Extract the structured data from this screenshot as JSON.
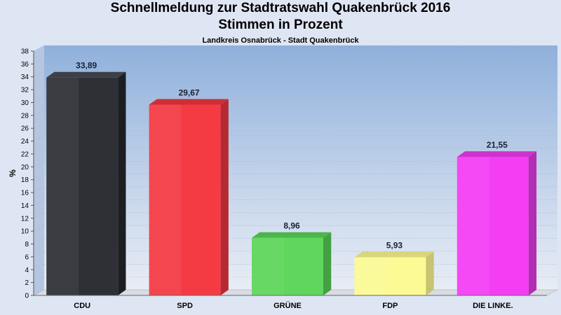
{
  "header": {
    "title_line1": "Schnellmeldung zur Stadtratswahl Quakenbrück 2016",
    "title_line2": "Stimmen in Prozent",
    "subtitle": "Landkreis Osnabrück - Stadt Quakenbrück"
  },
  "chart_data": {
    "type": "bar",
    "title": "Schnellmeldung zur Stadtratswahl Quakenbrück 2016 Stimmen in Prozent",
    "subtitle": "Landkreis Osnabrück - Stadt Quakenbrück",
    "xlabel": "",
    "ylabel": "%",
    "ylim": [
      0,
      38
    ],
    "ytick_step": 2,
    "grid": true,
    "categories": [
      "CDU",
      "SPD",
      "GRÜNE",
      "FDP",
      "DIE LINKE."
    ],
    "values": [
      33.89,
      29.67,
      8.96,
      5.93,
      21.55
    ],
    "value_labels": [
      "33,89",
      "29,67",
      "8,96",
      "5,93",
      "21,55"
    ],
    "colors": [
      "#2e3036",
      "#f43b44",
      "#5fd65c",
      "#fbfa94",
      "#f43ef4"
    ],
    "side_colors": [
      "#1c1e22",
      "#b52a31",
      "#43a043",
      "#c6c46f",
      "#b22eb2"
    ],
    "top_colors": [
      "#3c3f46",
      "#ce2f36",
      "#4cb64a",
      "#d8d67a",
      "#cd33cd"
    ]
  }
}
